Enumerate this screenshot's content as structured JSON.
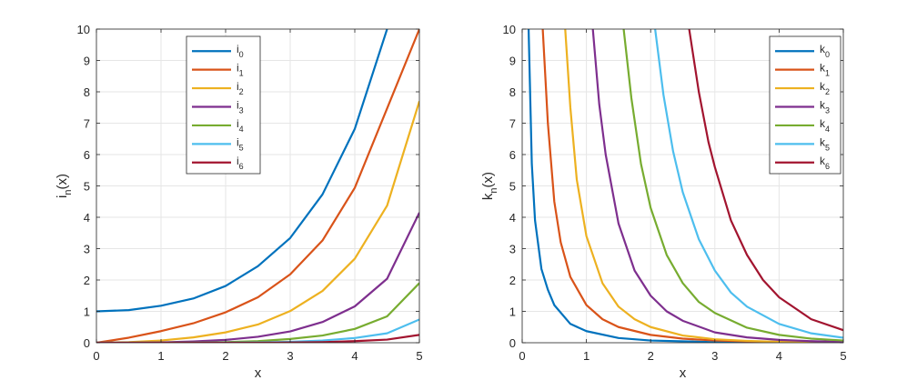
{
  "chart_data": [
    {
      "type": "line",
      "xlabel": "x",
      "ylabel_main": "i",
      "ylabel_sub": "n",
      "ylabel_tail": "(x)",
      "xlim": [
        0,
        5
      ],
      "ylim": [
        0,
        10
      ],
      "grid": true,
      "legend_position": "top-center",
      "xticks": [
        "0",
        "1",
        "2",
        "3",
        "4",
        "5"
      ],
      "yticks": [
        "0",
        "1",
        "2",
        "3",
        "4",
        "5",
        "6",
        "7",
        "8",
        "9",
        "10"
      ],
      "x": [
        0,
        0.5,
        1,
        1.5,
        2,
        2.5,
        3,
        3.5,
        4,
        4.5,
        5
      ],
      "series": [
        {
          "name": "i",
          "sub": "0",
          "color": "#0072BD",
          "values": [
            1,
            1.04,
            1.18,
            1.41,
            1.81,
            2.44,
            3.34,
            4.73,
            6.82,
            10.0,
            null
          ]
        },
        {
          "name": "i",
          "sub": "1",
          "color": "#D95319",
          "values": [
            0,
            0.16,
            0.37,
            0.62,
            0.97,
            1.45,
            2.18,
            3.26,
            4.94,
            7.47,
            10.0
          ]
        },
        {
          "name": "i",
          "sub": "2",
          "color": "#EDB120",
          "values": [
            0,
            0.02,
            0.07,
            0.17,
            0.33,
            0.58,
            1.01,
            1.65,
            2.68,
            4.37,
            7.7
          ]
        },
        {
          "name": "i",
          "sub": "3",
          "color": "#7E2F8E",
          "values": [
            0,
            0.002,
            0.01,
            0.04,
            0.09,
            0.19,
            0.36,
            0.66,
            1.16,
            2.04,
            4.15
          ]
        },
        {
          "name": "i",
          "sub": "4",
          "color": "#77AC30",
          "values": [
            0,
            0,
            0.001,
            0.005,
            0.02,
            0.05,
            0.12,
            0.23,
            0.44,
            0.84,
            1.9
          ]
        },
        {
          "name": "i",
          "sub": "5",
          "color": "#4DBEEE",
          "values": [
            0,
            0,
            0,
            0.001,
            0.004,
            0.01,
            0.03,
            0.07,
            0.15,
            0.3,
            0.74
          ]
        },
        {
          "name": "i",
          "sub": "6",
          "color": "#A2142F",
          "values": [
            0,
            0,
            0,
            0,
            0.001,
            0.002,
            0.008,
            0.02,
            0.05,
            0.1,
            0.25
          ]
        }
      ]
    },
    {
      "type": "line",
      "xlabel": "x",
      "ylabel_main": "k",
      "ylabel_sub": "n",
      "ylabel_tail": "(x)",
      "xlim": [
        0,
        5
      ],
      "ylim": [
        0,
        10
      ],
      "grid": true,
      "legend_position": "top-right",
      "xticks": [
        "0",
        "1",
        "2",
        "3",
        "4",
        "5"
      ],
      "yticks": [
        "0",
        "1",
        "2",
        "3",
        "4",
        "5",
        "6",
        "7",
        "8",
        "9",
        "10"
      ],
      "series": [
        {
          "name": "k",
          "sub": "0",
          "color": "#0072BD",
          "x": [
            0.1,
            0.15,
            0.2,
            0.3,
            0.4,
            0.5,
            0.75,
            1,
            1.5,
            2,
            3,
            4,
            5
          ],
          "values": [
            10.0,
            5.7,
            3.9,
            2.35,
            1.69,
            1.2,
            0.6,
            0.37,
            0.15,
            0.07,
            0.02,
            0.005,
            0.002
          ]
        },
        {
          "name": "k",
          "sub": "1",
          "color": "#D95319",
          "x": [
            0.32,
            0.4,
            0.5,
            0.6,
            0.75,
            1,
            1.25,
            1.5,
            2,
            2.5,
            3,
            4,
            5
          ],
          "values": [
            10.0,
            7.0,
            4.5,
            3.2,
            2.1,
            1.2,
            0.75,
            0.5,
            0.25,
            0.13,
            0.07,
            0.02,
            0.005
          ]
        },
        {
          "name": "k",
          "sub": "2",
          "color": "#EDB120",
          "x": [
            0.67,
            0.75,
            0.85,
            1,
            1.25,
            1.5,
            1.75,
            2,
            2.5,
            3,
            3.5,
            4,
            5
          ],
          "values": [
            10.0,
            7.5,
            5.2,
            3.4,
            1.9,
            1.15,
            0.75,
            0.5,
            0.23,
            0.11,
            0.06,
            0.03,
            0.008
          ]
        },
        {
          "name": "k",
          "sub": "3",
          "color": "#7E2F8E",
          "x": [
            1.1,
            1.2,
            1.3,
            1.5,
            1.75,
            2,
            2.25,
            2.5,
            3,
            3.5,
            4,
            4.5,
            5
          ],
          "values": [
            10.0,
            7.6,
            6.0,
            3.8,
            2.3,
            1.5,
            1.0,
            0.7,
            0.33,
            0.17,
            0.09,
            0.05,
            0.025
          ]
        },
        {
          "name": "k",
          "sub": "4",
          "color": "#77AC30",
          "x": [
            1.58,
            1.7,
            1.85,
            2,
            2.25,
            2.5,
            2.75,
            3,
            3.5,
            4,
            4.5,
            5
          ],
          "values": [
            10.0,
            7.8,
            5.7,
            4.3,
            2.8,
            1.9,
            1.3,
            0.95,
            0.48,
            0.25,
            0.13,
            0.07
          ]
        },
        {
          "name": "k",
          "sub": "5",
          "color": "#4DBEEE",
          "x": [
            2.07,
            2.2,
            2.35,
            2.5,
            2.75,
            3,
            3.25,
            3.5,
            4,
            4.5,
            5
          ],
          "values": [
            10.0,
            7.9,
            6.1,
            4.8,
            3.3,
            2.3,
            1.6,
            1.15,
            0.6,
            0.3,
            0.16
          ]
        },
        {
          "name": "k",
          "sub": "6",
          "color": "#A2142F",
          "x": [
            2.6,
            2.75,
            2.9,
            3,
            3.25,
            3.5,
            3.75,
            4,
            4.5,
            5
          ],
          "values": [
            10.0,
            8.0,
            6.4,
            5.6,
            3.9,
            2.8,
            2.0,
            1.45,
            0.75,
            0.4
          ]
        }
      ]
    }
  ]
}
